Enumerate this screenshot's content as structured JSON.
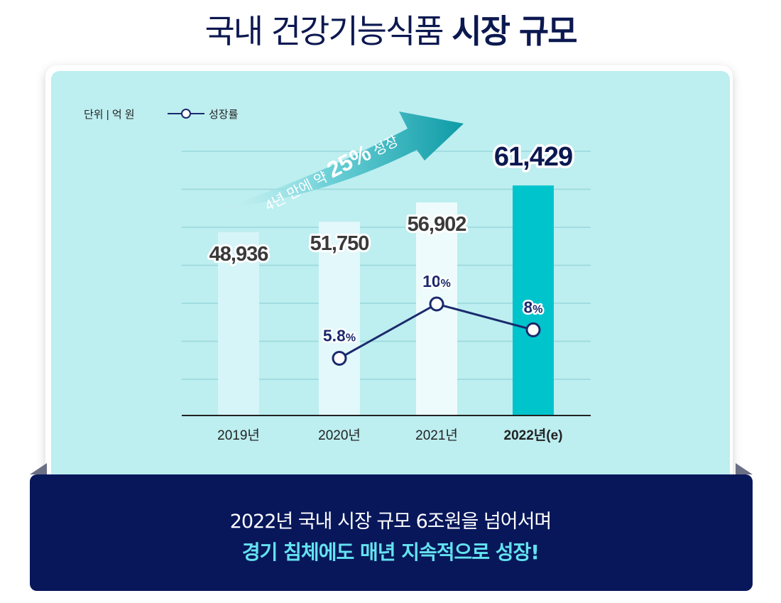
{
  "page": {
    "title_normal": "국내 건강기능식품 ",
    "title_bold": "시장 규모",
    "unit_label": "단위 | 억 원",
    "legend_growth": "성장률",
    "arrow_prefix": "4년 만에 약 ",
    "arrow_highlight": "25%",
    "arrow_suffix": " 성장",
    "banner_line1": "2022년 국내 시장 규모 6조원을 넘어서며",
    "banner_line2": "경기 침체에도 매년 지속적으로 성장!"
  },
  "colors": {
    "title": "#0c1850",
    "card_bg": "#bdeef0",
    "highlight_bar": "#00c4cc",
    "line": "#1a2a6c",
    "banner_bg": "#08175a",
    "banner_accent": "#63e2ef"
  },
  "chart_data": {
    "type": "bar",
    "categories": [
      "2019년",
      "2020년",
      "2021년",
      "2022년(e)"
    ],
    "series": [
      {
        "name": "",
        "type": "bar",
        "values": [
          48936,
          51750,
          56902,
          61429
        ],
        "value_labels": [
          "48,936",
          "51,750",
          "56,902",
          "61,429"
        ]
      },
      {
        "name": "성장률",
        "type": "line",
        "values": [
          null,
          5.8,
          10,
          8
        ],
        "value_labels": [
          "",
          "5.8%",
          "10%",
          "8%"
        ]
      }
    ],
    "highlight_category": "2022년(e)",
    "grid": true,
    "legend": "top-left"
  }
}
